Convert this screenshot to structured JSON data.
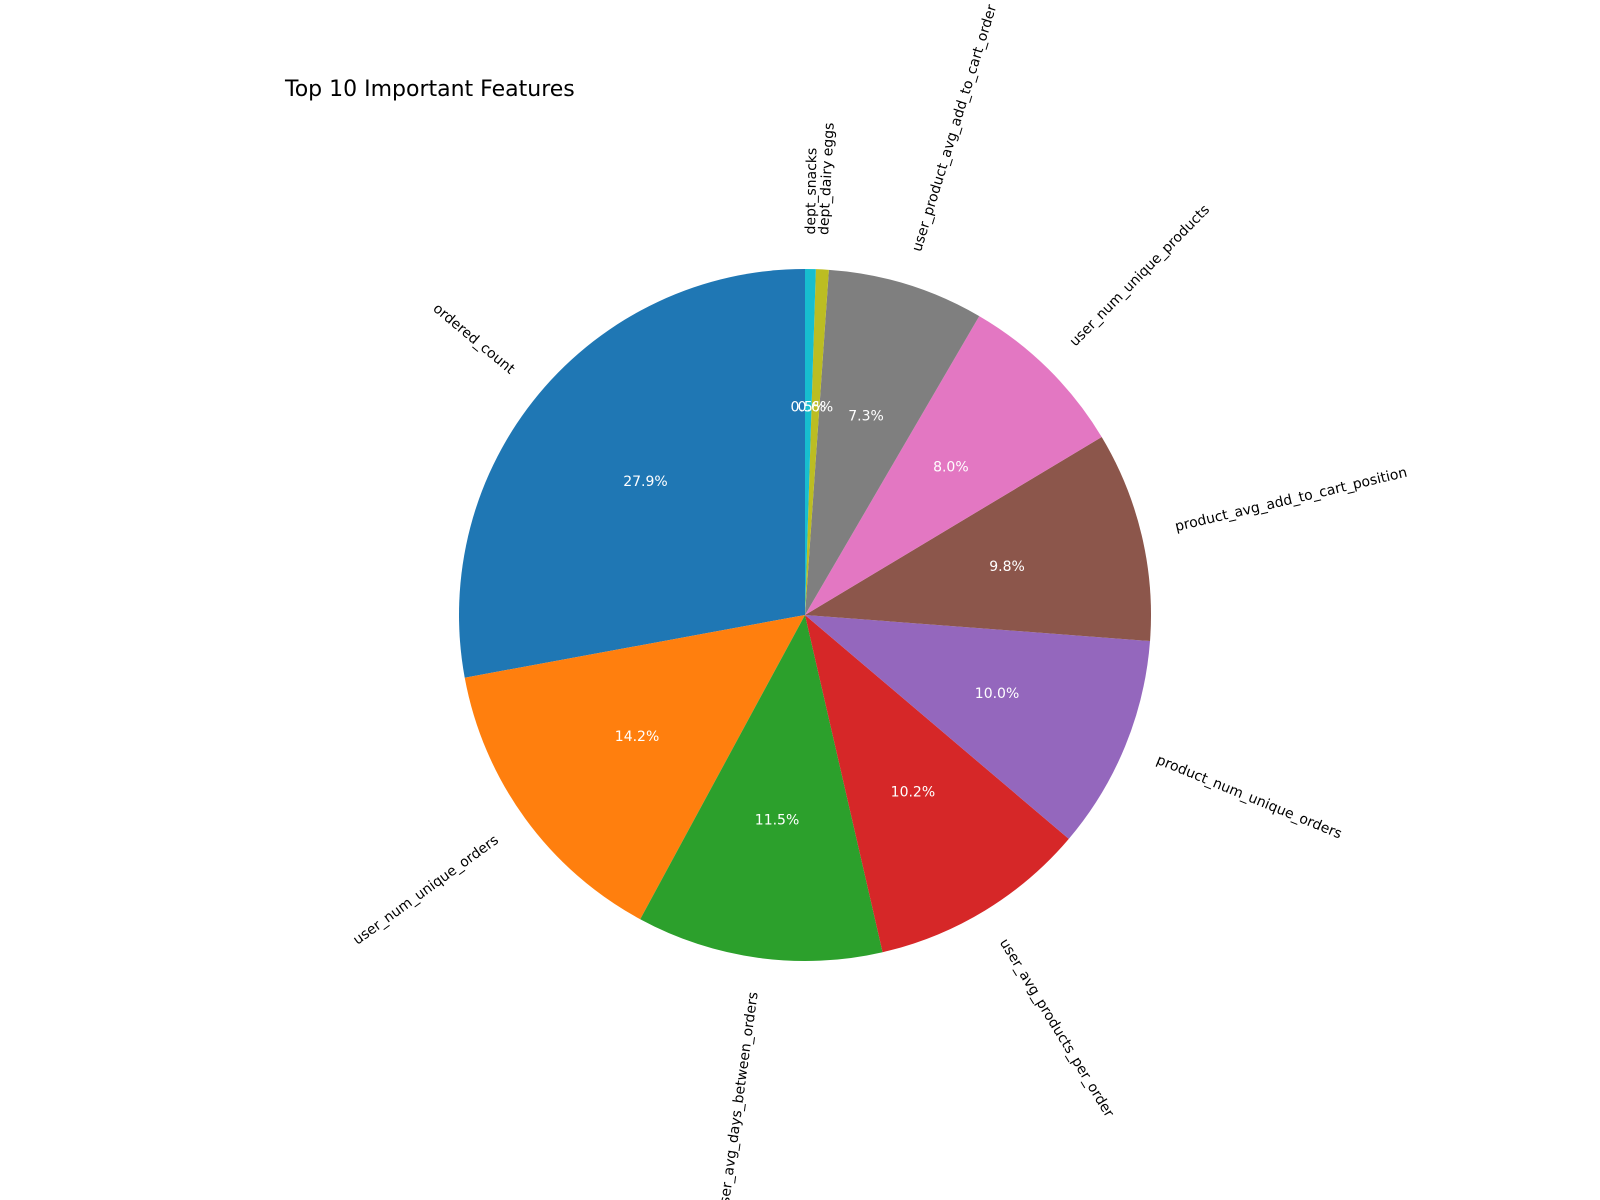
{
  "chart_data": {
    "type": "pie",
    "title": "Top 10 Important Features",
    "categories": [
      "ordered_count",
      "user_num_unique_orders",
      "user_avg_days_between_orders",
      "user_avg_products_per_order",
      "product_num_unique_orders",
      "product_avg_add_to_cart_position",
      "user_num_unique_products",
      "user_product_avg_add_to_cart_order",
      "dept_dairy eggs",
      "dept_snacks"
    ],
    "values": [
      27.9,
      14.2,
      11.5,
      10.2,
      10.0,
      9.8,
      8.0,
      7.3,
      0.6,
      0.5
    ],
    "percent_labels": [
      "27.9%",
      "14.2%",
      "11.5%",
      "10.2%",
      "10.0%",
      "9.8%",
      "8.0%",
      "7.3%",
      "0.6%",
      "0.5%"
    ],
    "colors": [
      "#1f77b4",
      "#ff7f0e",
      "#2ca02c",
      "#d62728",
      "#9467bd",
      "#8c564b",
      "#e377c2",
      "#7f7f7f",
      "#bcbd22",
      "#17becf"
    ],
    "start_angle_deg": 90,
    "direction": "counterclockwise",
    "label_rotation": "radial"
  }
}
